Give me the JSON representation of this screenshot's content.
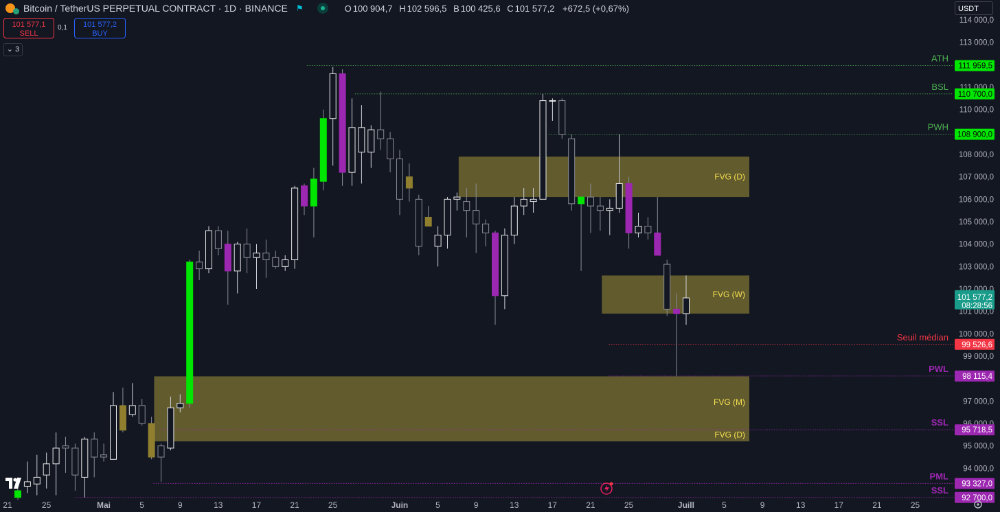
{
  "header": {
    "symbol": "Bitcoin / TetherUS PERPETUAL CONTRACT · 1D · BINANCE",
    "o_label": "O",
    "o_value": "100 904,7",
    "h_label": "H",
    "h_value": "102 596,5",
    "b_label": "B",
    "b_value": "100 425,6",
    "c_label": "C",
    "c_value": "101 577,2",
    "change": "+672,5 (+0,67%)"
  },
  "trade": {
    "sell_price": "101 577,1",
    "sell_label": "SELL",
    "spread": "0,1",
    "buy_price": "101 577,2",
    "buy_label": "BUY"
  },
  "indicators_badge": "3",
  "currency": "USDT",
  "colors": {
    "background": "#131722",
    "bull_strong": "#00e600",
    "bear_strong": "#9c27b0",
    "zone": "#6b6330",
    "green_level": "#4caf50",
    "red_level": "#f23645",
    "purple_level": "#9c27b0"
  },
  "chart_data": {
    "type": "candlestick",
    "ylim": [
      92000,
      114300
    ],
    "y_ticks": [
      {
        "value": 113000,
        "label": "113 000,0"
      },
      {
        "value": 112000,
        "label": "112 000,0"
      },
      {
        "value": 111000,
        "label": "111 000,0"
      },
      {
        "value": 110000,
        "label": "110 000,0"
      },
      {
        "value": 109000,
        "label": "109 000,0"
      },
      {
        "value": 108000,
        "label": "108 000,0"
      },
      {
        "value": 107000,
        "label": "107 000,0"
      },
      {
        "value": 106000,
        "label": "106 000,0"
      },
      {
        "value": 105000,
        "label": "105 000,0"
      },
      {
        "value": 104000,
        "label": "104 000,0"
      },
      {
        "value": 103000,
        "label": "103 000,0"
      },
      {
        "value": 102000,
        "label": "102 000,0"
      },
      {
        "value": 101000,
        "label": "101 000,0"
      },
      {
        "value": 100000,
        "label": "100 000,0"
      },
      {
        "value": 99000,
        "label": "99 000,0"
      },
      {
        "value": 98000,
        "label": "98 000,0"
      },
      {
        "value": 97000,
        "label": "97 000,0"
      },
      {
        "value": 96000,
        "label": "96 000,0"
      },
      {
        "value": 95000,
        "label": "95 000,0"
      },
      {
        "value": 94000,
        "label": "94 000,0"
      },
      {
        "value": 114000,
        "label": "114 000,0"
      }
    ],
    "x_ticks": [
      {
        "index": 0,
        "label": "21"
      },
      {
        "index": 4,
        "label": "25"
      },
      {
        "index": 10,
        "label": "Mai"
      },
      {
        "index": 14,
        "label": "5"
      },
      {
        "index": 18,
        "label": "9"
      },
      {
        "index": 22,
        "label": "13"
      },
      {
        "index": 26,
        "label": "17"
      },
      {
        "index": 30,
        "label": "21"
      },
      {
        "index": 34,
        "label": "25"
      },
      {
        "index": 41,
        "label": "Juin"
      },
      {
        "index": 45,
        "label": "5"
      },
      {
        "index": 49,
        "label": "9"
      },
      {
        "index": 53,
        "label": "13"
      },
      {
        "index": 57,
        "label": "17"
      },
      {
        "index": 61,
        "label": "21"
      },
      {
        "index": 65,
        "label": "25"
      },
      {
        "index": 71,
        "label": "Juill"
      },
      {
        "index": 75,
        "label": "5"
      },
      {
        "index": 79,
        "label": "9"
      },
      {
        "index": 83,
        "label": "13"
      },
      {
        "index": 87,
        "label": "17"
      },
      {
        "index": 91,
        "label": "21"
      },
      {
        "index": 95,
        "label": "25"
      }
    ],
    "candles": [
      {
        "o": 92700,
        "h": 93600,
        "l": 92600,
        "c": 93000,
        "s": "bull"
      },
      {
        "o": 93200,
        "h": 94300,
        "l": 92900,
        "c": 93400,
        "s": "up"
      },
      {
        "o": 93300,
        "h": 94600,
        "l": 92800,
        "c": 93600,
        "s": "up"
      },
      {
        "o": 93700,
        "h": 94700,
        "l": 93100,
        "c": 94200,
        "s": "up"
      },
      {
        "o": 94200,
        "h": 95600,
        "l": 92800,
        "c": 94900,
        "s": "up"
      },
      {
        "o": 94900,
        "h": 95400,
        "l": 93800,
        "c": 95000,
        "s": "dn"
      },
      {
        "o": 94900,
        "h": 95100,
        "l": 93000,
        "c": 93700,
        "s": "dn"
      },
      {
        "o": 93600,
        "h": 95400,
        "l": 92700,
        "c": 95300,
        "s": "up"
      },
      {
        "o": 95300,
        "h": 95600,
        "l": 93600,
        "c": 94500,
        "s": "dn"
      },
      {
        "o": 94500,
        "h": 95100,
        "l": 94300,
        "c": 94600,
        "s": "dn"
      },
      {
        "o": 94400,
        "h": 97400,
        "l": 94400,
        "c": 96800,
        "s": "up"
      },
      {
        "o": 96800,
        "h": 97600,
        "l": 95600,
        "c": 95700,
        "s": "dnz"
      },
      {
        "o": 96400,
        "h": 97800,
        "l": 96300,
        "c": 96800,
        "s": "up"
      },
      {
        "o": 96800,
        "h": 97100,
        "l": 95900,
        "c": 96000,
        "s": "dn"
      },
      {
        "o": 96000,
        "h": 96300,
        "l": 94400,
        "c": 94500,
        "s": "dnz"
      },
      {
        "o": 94500,
        "h": 95100,
        "l": 93400,
        "c": 95000,
        "s": "dn"
      },
      {
        "o": 94900,
        "h": 97200,
        "l": 94800,
        "c": 96700,
        "s": "up"
      },
      {
        "o": 96700,
        "h": 97300,
        "l": 96500,
        "c": 96900,
        "s": "up"
      },
      {
        "o": 96900,
        "h": 103300,
        "l": 96700,
        "c": 103200,
        "s": "bull"
      },
      {
        "o": 103200,
        "h": 103700,
        "l": 102400,
        "c": 102900,
        "s": "dn"
      },
      {
        "o": 102900,
        "h": 104800,
        "l": 102700,
        "c": 104600,
        "s": "up"
      },
      {
        "o": 104600,
        "h": 104800,
        "l": 103500,
        "c": 103800,
        "s": "dn"
      },
      {
        "o": 104000,
        "h": 104600,
        "l": 101300,
        "c": 102800,
        "s": "bear"
      },
      {
        "o": 102800,
        "h": 104100,
        "l": 101800,
        "c": 104000,
        "s": "up"
      },
      {
        "o": 104000,
        "h": 104700,
        "l": 102700,
        "c": 103400,
        "s": "dn"
      },
      {
        "o": 103400,
        "h": 104000,
        "l": 102000,
        "c": 103600,
        "s": "up"
      },
      {
        "o": 103600,
        "h": 104200,
        "l": 102500,
        "c": 103300,
        "s": "dn"
      },
      {
        "o": 103400,
        "h": 103700,
        "l": 102900,
        "c": 103000,
        "s": "dn"
      },
      {
        "o": 103000,
        "h": 103500,
        "l": 102800,
        "c": 103300,
        "s": "up"
      },
      {
        "o": 103300,
        "h": 106600,
        "l": 102900,
        "c": 106500,
        "s": "up"
      },
      {
        "o": 106600,
        "h": 106700,
        "l": 105300,
        "c": 105700,
        "s": "bear"
      },
      {
        "o": 105700,
        "h": 107400,
        "l": 104300,
        "c": 106900,
        "s": "bull"
      },
      {
        "o": 106800,
        "h": 110000,
        "l": 106400,
        "c": 109600,
        "s": "bull"
      },
      {
        "o": 109600,
        "h": 111900,
        "l": 107500,
        "c": 111600,
        "s": "up"
      },
      {
        "o": 111600,
        "h": 111800,
        "l": 106600,
        "c": 107200,
        "s": "bear"
      },
      {
        "o": 107200,
        "h": 110500,
        "l": 106600,
        "c": 109200,
        "s": "up"
      },
      {
        "o": 109200,
        "h": 110200,
        "l": 106700,
        "c": 108100,
        "s": "up"
      },
      {
        "o": 108100,
        "h": 109300,
        "l": 107400,
        "c": 109100,
        "s": "up"
      },
      {
        "o": 109100,
        "h": 110800,
        "l": 108200,
        "c": 108700,
        "s": "dn"
      },
      {
        "o": 108700,
        "h": 109000,
        "l": 107200,
        "c": 107800,
        "s": "dn"
      },
      {
        "o": 107800,
        "h": 108200,
        "l": 105300,
        "c": 106000,
        "s": "dn"
      },
      {
        "o": 107000,
        "h": 107600,
        "l": 105900,
        "c": 106500,
        "s": "dnz"
      },
      {
        "o": 106000,
        "h": 106200,
        "l": 103500,
        "c": 103900,
        "s": "dn"
      },
      {
        "o": 105200,
        "h": 105700,
        "l": 104800,
        "c": 104800,
        "s": "dnz"
      },
      {
        "o": 103900,
        "h": 104800,
        "l": 103000,
        "c": 104400,
        "s": "up"
      },
      {
        "o": 104400,
        "h": 106100,
        "l": 103800,
        "c": 106000,
        "s": "up"
      },
      {
        "o": 106000,
        "h": 106300,
        "l": 105500,
        "c": 106100,
        "s": "up"
      },
      {
        "o": 105900,
        "h": 106500,
        "l": 104300,
        "c": 105500,
        "s": "dn"
      },
      {
        "o": 105500,
        "h": 106700,
        "l": 103600,
        "c": 104900,
        "s": "dn"
      },
      {
        "o": 104900,
        "h": 105100,
        "l": 103900,
        "c": 104500,
        "s": "dn"
      },
      {
        "o": 104500,
        "h": 104600,
        "l": 100400,
        "c": 101700,
        "s": "bear"
      },
      {
        "o": 101700,
        "h": 104700,
        "l": 101100,
        "c": 104400,
        "s": "up"
      },
      {
        "o": 104400,
        "h": 106100,
        "l": 104000,
        "c": 105700,
        "s": "up"
      },
      {
        "o": 105700,
        "h": 106500,
        "l": 105300,
        "c": 106000,
        "s": "up"
      },
      {
        "o": 105900,
        "h": 106500,
        "l": 105400,
        "c": 106000,
        "s": "up"
      },
      {
        "o": 106000,
        "h": 110700,
        "l": 106000,
        "c": 110400,
        "s": "up"
      },
      {
        "o": 110400,
        "h": 110500,
        "l": 109500,
        "c": 110400,
        "s": "up"
      },
      {
        "o": 110400,
        "h": 110500,
        "l": 108700,
        "c": 108900,
        "s": "dn"
      },
      {
        "o": 108700,
        "h": 108900,
        "l": 105500,
        "c": 105800,
        "s": "dn"
      },
      {
        "o": 105800,
        "h": 106000,
        "l": 102800,
        "c": 106100,
        "s": "bull"
      },
      {
        "o": 106100,
        "h": 106700,
        "l": 104500,
        "c": 105700,
        "s": "dn"
      },
      {
        "o": 105700,
        "h": 106100,
        "l": 104600,
        "c": 105500,
        "s": "dn"
      },
      {
        "o": 105500,
        "h": 106000,
        "l": 104400,
        "c": 105600,
        "s": "up"
      },
      {
        "o": 105600,
        "h": 108900,
        "l": 105400,
        "c": 106700,
        "s": "up"
      },
      {
        "o": 106700,
        "h": 107000,
        "l": 103800,
        "c": 104500,
        "s": "bear"
      },
      {
        "o": 104500,
        "h": 105400,
        "l": 104300,
        "c": 104800,
        "s": "up"
      },
      {
        "o": 104800,
        "h": 105200,
        "l": 104200,
        "c": 104500,
        "s": "dn"
      },
      {
        "o": 104500,
        "h": 106100,
        "l": 103500,
        "c": 103500,
        "s": "bear"
      },
      {
        "o": 103100,
        "h": 103300,
        "l": 100800,
        "c": 101100,
        "s": "dn"
      },
      {
        "o": 101100,
        "h": 101800,
        "l": 98100,
        "c": 100900,
        "s": "bear"
      },
      {
        "o": 100900,
        "h": 102600,
        "l": 100400,
        "c": 101600,
        "s": "up"
      }
    ],
    "zones": [
      {
        "label": "FVG (D)",
        "low": 106100,
        "high": 107900,
        "x0": "11 juin",
        "x1": "8 juill"
      },
      {
        "label": "FVG (W)",
        "low": 100900,
        "high": 102600,
        "x0": "22 juin",
        "x1": "8 juill"
      },
      {
        "label": "FVG (M)",
        "low": 95800,
        "high": 98100,
        "x0": "6 mai",
        "x1": "8 juill"
      },
      {
        "label": "FVG (D)",
        "low": 95200,
        "high": 95800,
        "x0": "6 mai",
        "x1": "8 juill"
      }
    ],
    "levels": [
      {
        "name": "ATH",
        "value": 111959.5,
        "label": "111 959,5",
        "tag": "ATH",
        "color": "#4caf50",
        "box": "#00e600"
      },
      {
        "name": "BSL",
        "value": 110700,
        "label": "110 700,0",
        "tag": "BSL",
        "color": "#4caf50",
        "box": "#00e600"
      },
      {
        "name": "PWH",
        "value": 108900,
        "label": "108 900,0",
        "tag": "PWH",
        "color": "#4caf50",
        "box": "#00e600"
      },
      {
        "name": "Seuil médian",
        "value": 99526.6,
        "label": "99 526,6",
        "tag": "Seuil médian",
        "color": "#f23645",
        "box": "#f23645"
      },
      {
        "name": "PWL",
        "value": 98115.4,
        "label": "98 115,4",
        "tag": "PWL",
        "color": "#9c27b0",
        "box": "#9c27b0"
      },
      {
        "name": "SSL",
        "value": 95718.5,
        "label": "95 718,5",
        "tag": "SSL",
        "color": "#9c27b0",
        "box": "#9c27b0"
      },
      {
        "name": "PML",
        "value": 93327,
        "label": "93 327,0",
        "tag": "PML",
        "color": "#9c27b0",
        "box": "#9c27b0"
      },
      {
        "name": "SSL",
        "value": 92700,
        "label": "92 700,0",
        "tag": "SSL",
        "color": "#9c27b0",
        "box": "#9c27b0"
      }
    ],
    "last_price": {
      "value": 101577.2,
      "label": "101 577,2",
      "countdown": "08:28:56"
    }
  }
}
